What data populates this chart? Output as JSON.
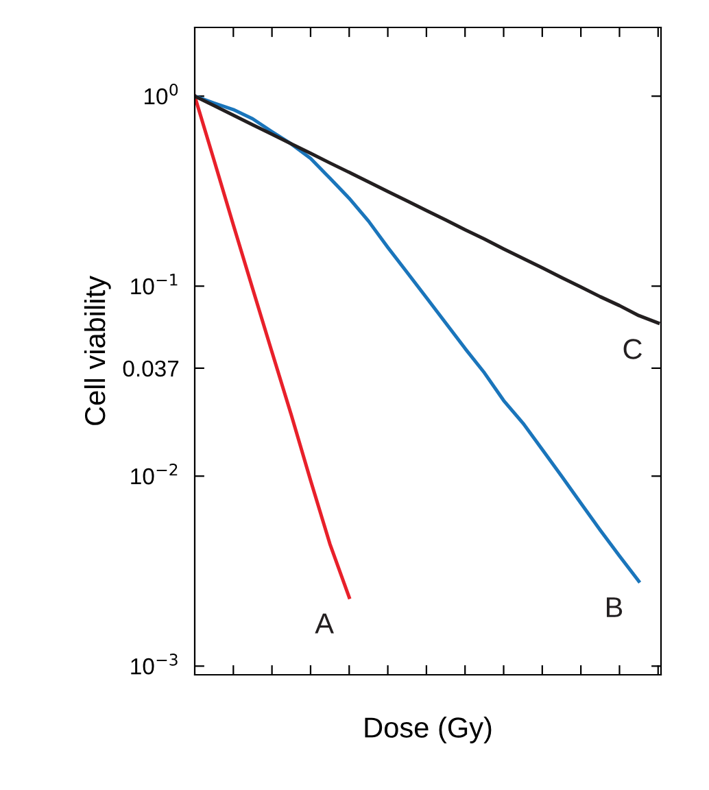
{
  "chart_data": {
    "type": "line",
    "xlabel": "Dose (Gy)",
    "ylabel": "Cell viability",
    "categories": [
      null,
      null,
      null,
      null,
      null,
      null,
      null,
      null,
      null,
      null,
      null,
      null,
      null,
      null,
      null,
      null,
      null,
      null,
      null,
      null,
      null,
      null,
      null,
      null,
      null
    ],
    "series": [
      {
        "name": "A",
        "color": "#e8202a",
        "values": [
          1.0,
          0.46,
          0.21,
          0.097,
          0.045,
          0.021,
          0.0095,
          0.0044,
          0.0023,
          null,
          null,
          null,
          null,
          null,
          null,
          null,
          null,
          null,
          null,
          null,
          null,
          null,
          null,
          null,
          null
        ]
      },
      {
        "name": "B",
        "color": "#1a75bb",
        "values": [
          1.0,
          0.92,
          0.85,
          0.76,
          0.65,
          0.56,
          0.47,
          0.37,
          0.29,
          0.22,
          0.16,
          0.118,
          0.087,
          0.064,
          0.047,
          0.035,
          0.025,
          0.019,
          0.0138,
          0.01,
          0.0072,
          0.0052,
          0.0038,
          0.0028,
          null
        ]
      },
      {
        "name": "C",
        "color": "#231f20",
        "values": [
          1.0,
          0.891,
          0.794,
          0.707,
          0.63,
          0.561,
          0.5,
          0.445,
          0.397,
          0.354,
          0.315,
          0.281,
          0.25,
          0.223,
          0.198,
          0.177,
          0.157,
          0.14,
          0.125,
          0.111,
          0.099,
          0.088,
          0.079,
          0.07,
          0.064
        ]
      }
    ],
    "log": "y",
    "ylim": [
      0.0009,
      2.3
    ],
    "yticks": [
      {
        "value": 1,
        "label": "10$^{0}$"
      },
      {
        "value": 0.1,
        "label": "10$^{−1}$"
      },
      0.037,
      {
        "value": 0.01,
        "label": "10$^{−2}$"
      },
      {
        "value": 0.001,
        "label": "10$^{−3}$"
      }
    ],
    "tick_labels": "y",
    "grid": false,
    "legend": false,
    "marker": "none",
    "line_style": "solid"
  }
}
